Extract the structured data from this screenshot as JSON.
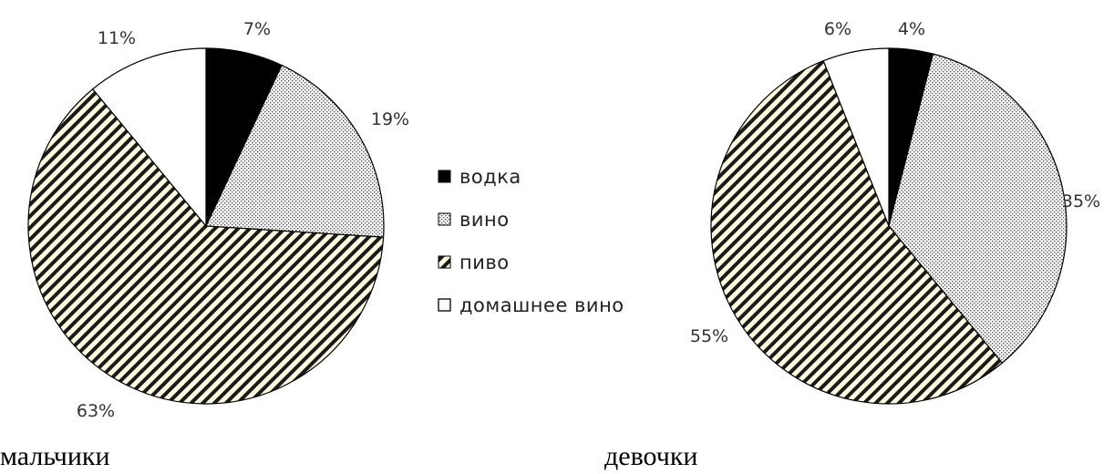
{
  "chart_data": [
    {
      "type": "pie",
      "caption": "мальчики",
      "slices": [
        {
          "category": "водка",
          "value": 7,
          "label": "7%"
        },
        {
          "category": "вино",
          "value": 19,
          "label": "19%"
        },
        {
          "category": "пиво",
          "value": 63,
          "label": "63%"
        },
        {
          "category": "домашнее вино",
          "value": 11,
          "label": "11%"
        }
      ]
    },
    {
      "type": "pie",
      "caption": "девочки",
      "slices": [
        {
          "category": "водка",
          "value": 4,
          "label": "4%"
        },
        {
          "category": "вино",
          "value": 35,
          "label": "35%"
        },
        {
          "category": "пиво",
          "value": 55,
          "label": "55%"
        },
        {
          "category": "домашнее вино",
          "value": 6,
          "label": "6%"
        }
      ]
    }
  ],
  "legend": {
    "position": "center",
    "items": [
      {
        "label": "водка",
        "pattern": "solid-black"
      },
      {
        "label": "вино",
        "pattern": "dotted-gray"
      },
      {
        "label": "пиво",
        "pattern": "diagonal-stripes"
      },
      {
        "label": "домашнее вино",
        "pattern": "white"
      }
    ]
  },
  "colors": {
    "vodka": "#000000",
    "wine_dots": "#555555",
    "beer_stripes": "#1a1a1a",
    "beer_bg": "#fffbe0",
    "home_wine": "#ffffff",
    "outline": "#000000"
  }
}
